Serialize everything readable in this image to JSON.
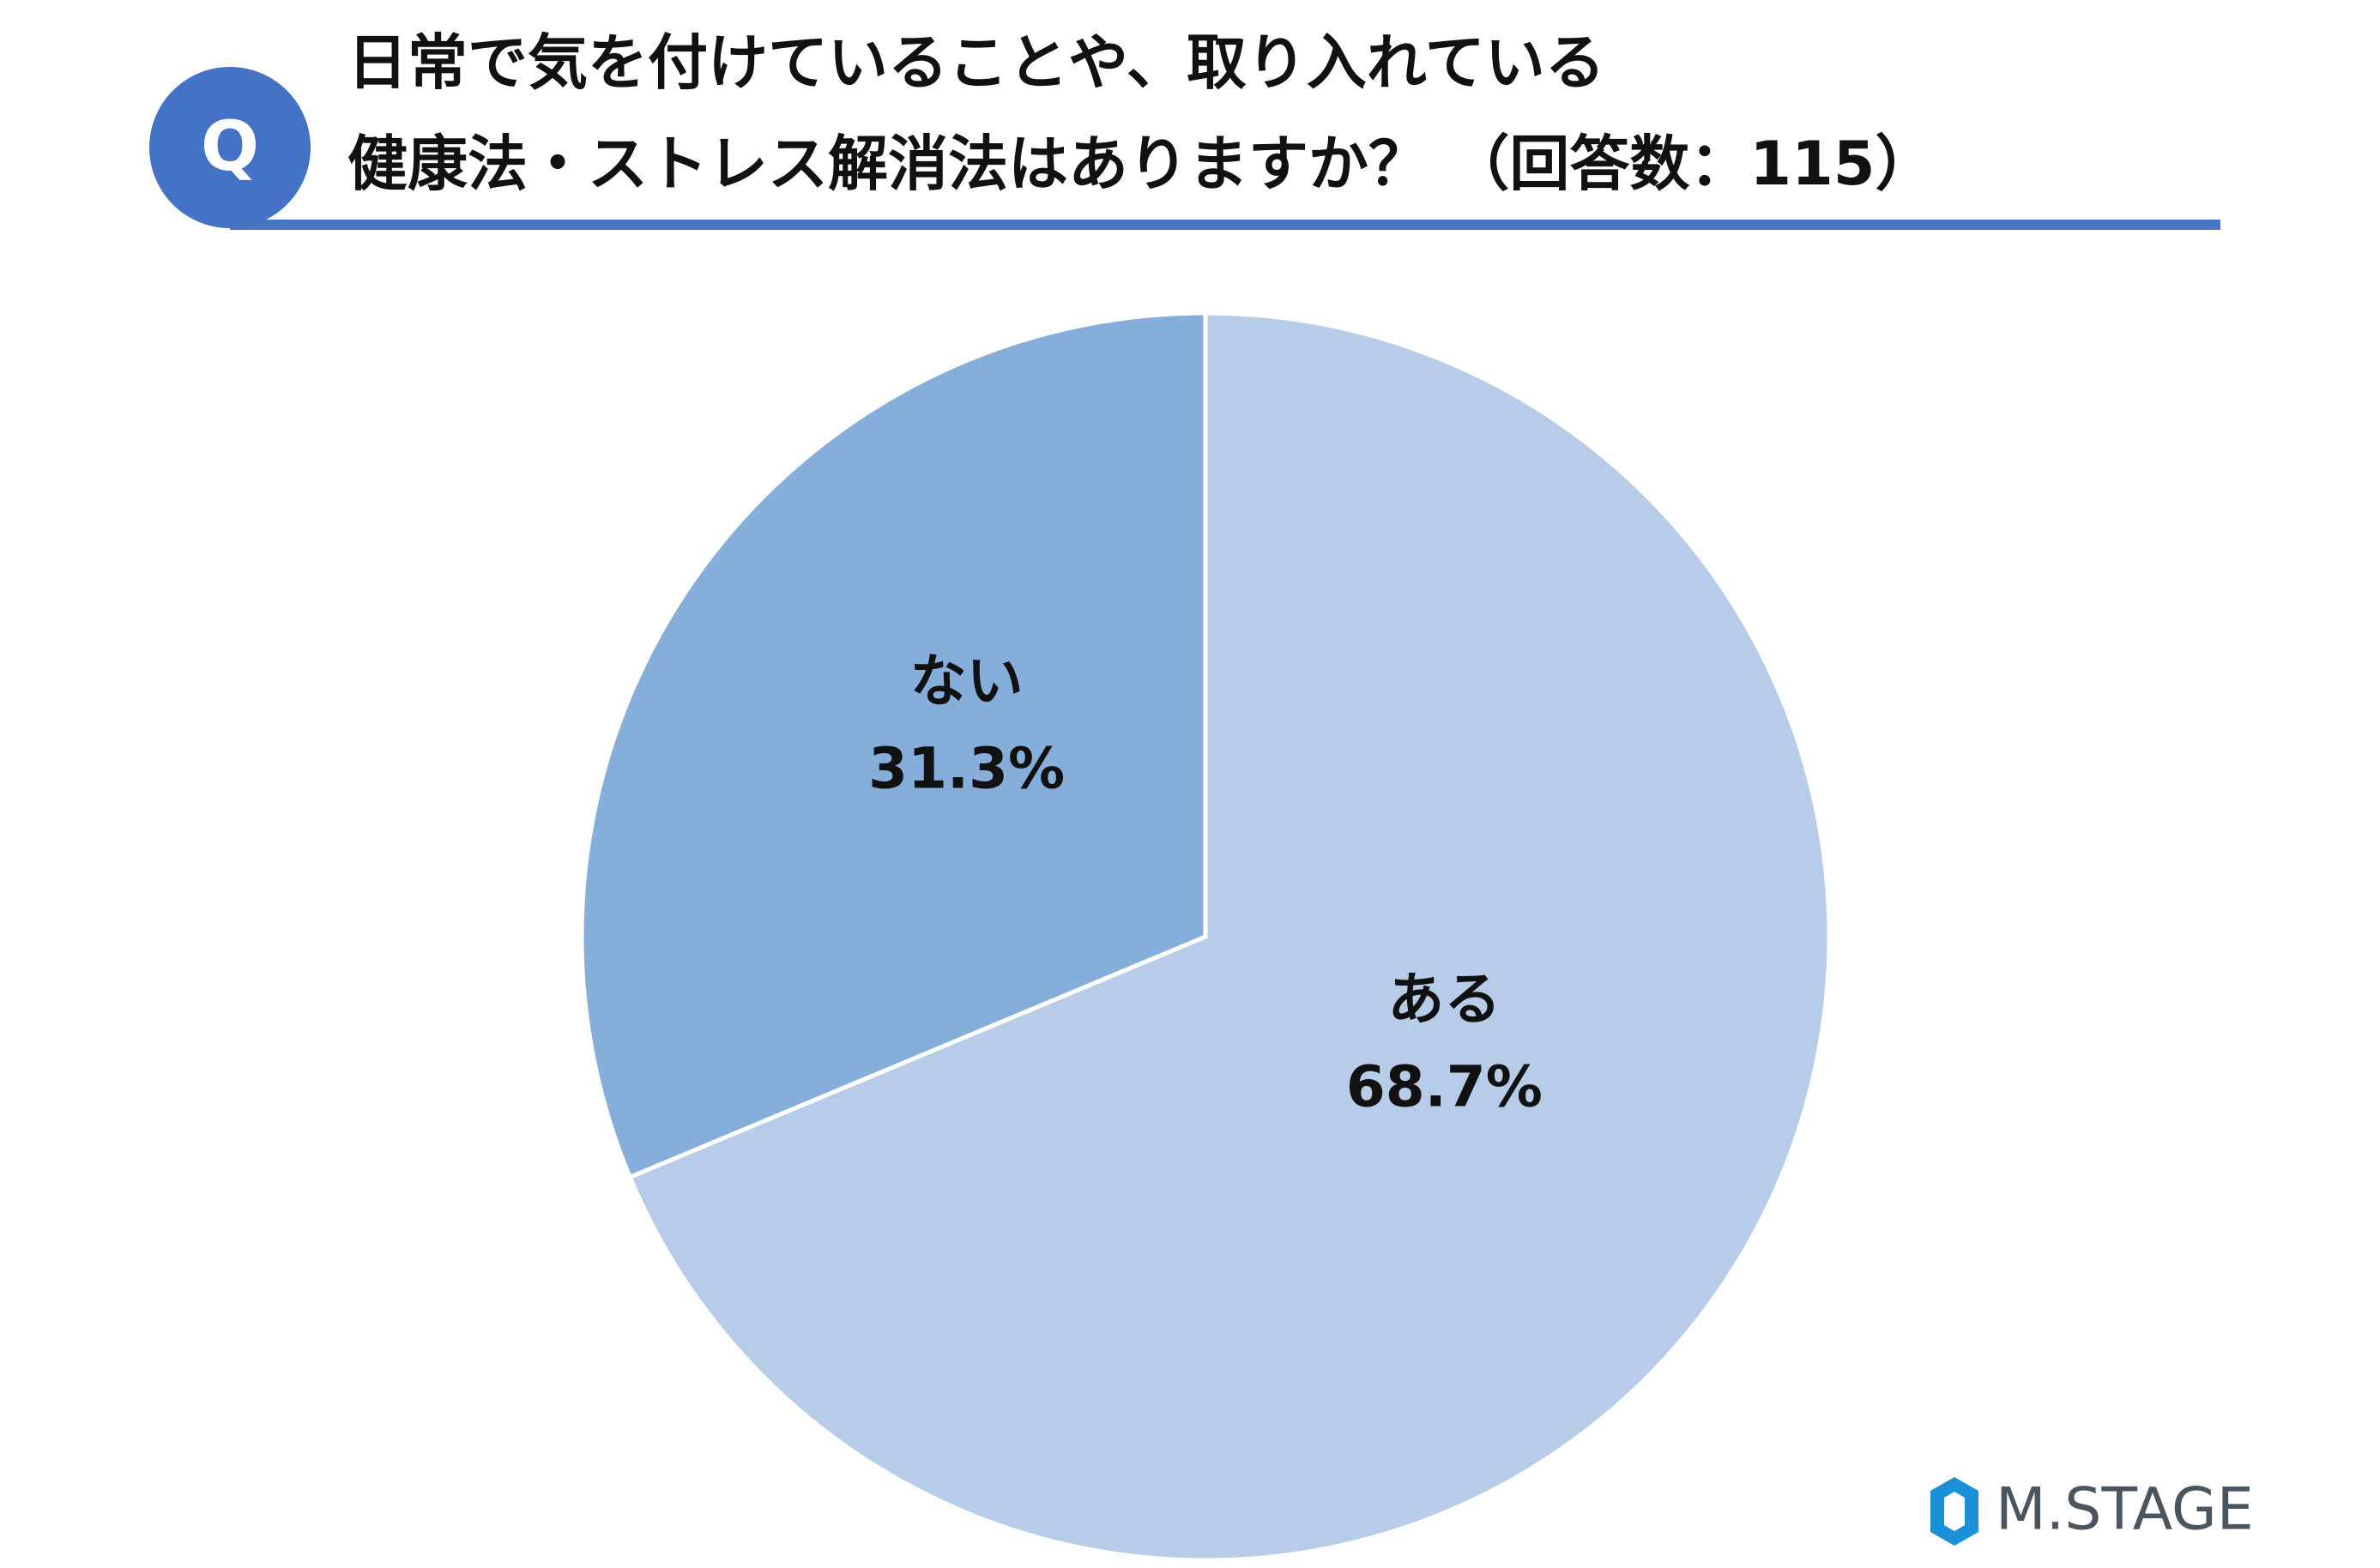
{
  "badge": "Q",
  "logo": "M.STAGE",
  "chart_data": {
    "type": "pie",
    "title": [
      "日常で気を付けていることや、取り入れている",
      "健康法・ストレス解消法はありますか？ （回答数：115）"
    ],
    "categories": [
      "ある",
      "ない"
    ],
    "values": [
      68.7,
      31.3
    ],
    "value_labels": [
      "68.7%",
      "31.3%"
    ],
    "colors": [
      "#b7cce8",
      "#86aedb"
    ]
  }
}
